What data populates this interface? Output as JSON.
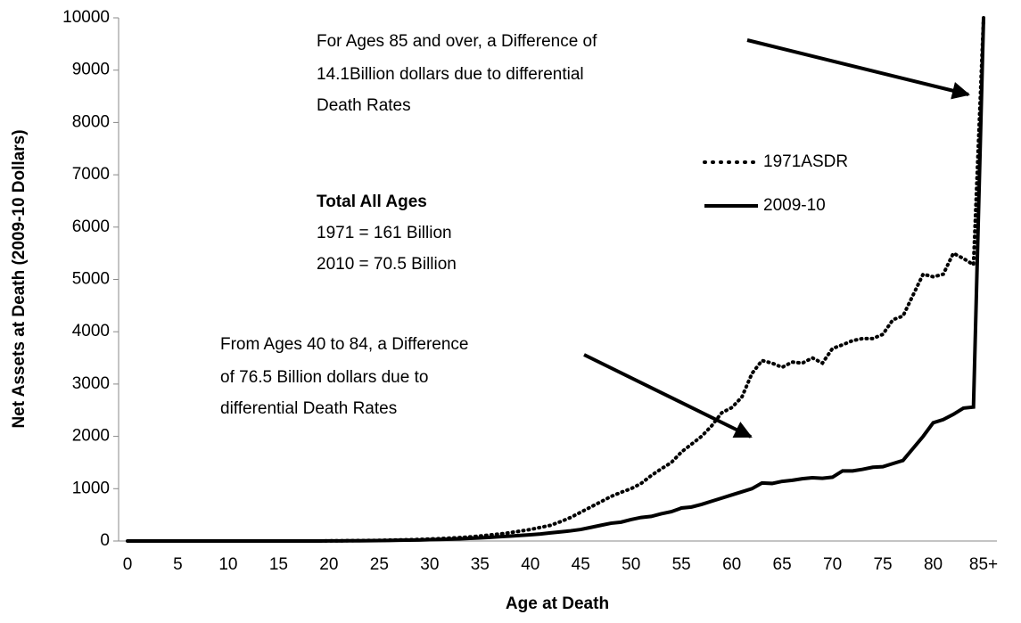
{
  "chart_data": {
    "type": "line",
    "x_label": "Age at Death",
    "y_label": "Net Assets at Death (2009-10 Dollars)",
    "categories": [
      "0",
      null,
      null,
      null,
      null,
      "5",
      null,
      null,
      null,
      null,
      "10",
      null,
      null,
      null,
      null,
      "15",
      null,
      null,
      null,
      null,
      "20",
      null,
      null,
      null,
      null,
      "25",
      null,
      null,
      null,
      null,
      "30",
      null,
      null,
      null,
      null,
      "35",
      null,
      null,
      null,
      null,
      "40",
      null,
      null,
      null,
      null,
      "45",
      null,
      null,
      null,
      null,
      "50",
      null,
      null,
      null,
      null,
      "55",
      null,
      null,
      null,
      null,
      "60",
      null,
      null,
      null,
      null,
      "65",
      null,
      null,
      null,
      null,
      "70",
      null,
      null,
      null,
      null,
      "75",
      null,
      null,
      null,
      null,
      "80",
      null,
      null,
      null,
      null,
      "85+"
    ],
    "series": [
      {
        "name": "1971ASDR",
        "color": "#000000",
        "dash": "dotted",
        "values": [
          0,
          0,
          0,
          0,
          0,
          0,
          0,
          0,
          0,
          0,
          0,
          0,
          0,
          0,
          0,
          0,
          0,
          0,
          0,
          0,
          3,
          4,
          6,
          8,
          10,
          13,
          16,
          20,
          25,
          30,
          38,
          45,
          55,
          65,
          78,
          95,
          115,
          135,
          160,
          190,
          220,
          260,
          300,
          370,
          450,
          550,
          650,
          750,
          850,
          930,
          1000,
          1100,
          1250,
          1380,
          1500,
          1700,
          1850,
          2000,
          2200,
          2450,
          2550,
          2750,
          3200,
          3450,
          3400,
          3320,
          3420,
          3400,
          3500,
          3400,
          3680,
          3750,
          3830,
          3870,
          3870,
          3950,
          4230,
          4300,
          4700,
          5100,
          5050,
          5100,
          5500,
          5400,
          5280,
          10000
        ]
      },
      {
        "name": "2009-10",
        "color": "#000000",
        "dash": "solid",
        "values": [
          0,
          0,
          0,
          0,
          0,
          0,
          0,
          0,
          0,
          0,
          0,
          0,
          0,
          0,
          0,
          0,
          0,
          0,
          0,
          0,
          2,
          3,
          4,
          5,
          7,
          9,
          11,
          14,
          17,
          20,
          25,
          30,
          36,
          43,
          51,
          60,
          70,
          82,
          94,
          107,
          120,
          135,
          155,
          175,
          195,
          220,
          260,
          300,
          340,
          360,
          410,
          450,
          470,
          520,
          560,
          630,
          650,
          700,
          760,
          820,
          880,
          940,
          1000,
          1110,
          1100,
          1140,
          1160,
          1190,
          1210,
          1200,
          1220,
          1340,
          1340,
          1370,
          1410,
          1420,
          1480,
          1540,
          1770,
          2000,
          2260,
          2320,
          2420,
          2540,
          2560,
          10000
        ]
      }
    ],
    "ylim": [
      0,
      10000
    ],
    "yticks": [
      0,
      1000,
      2000,
      3000,
      4000,
      5000,
      6000,
      7000,
      8000,
      9000,
      10000
    ],
    "annotations": [
      {
        "lines": [
          "For Ages 85 and over, a Difference of",
          "14.1Billion dollars due to differential",
          "Death Rates"
        ]
      },
      {
        "heading": "Total All Ages",
        "lines": [
          "1971 = 161 Billion",
          "2010 = 70.5 Billion"
        ]
      },
      {
        "lines": [
          "From Ages 40 to 84, a Difference",
          "of 76.5 Billion dollars  due to",
          "differential Death Rates"
        ]
      }
    ]
  }
}
